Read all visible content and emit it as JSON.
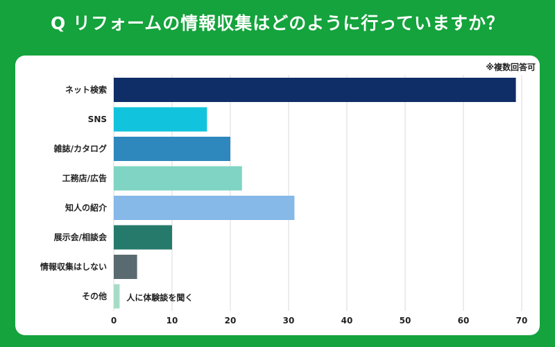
{
  "title": "Q リフォームの情報収集はどのように行っていますか？",
  "note": "※複数回答可",
  "chart_data": {
    "type": "bar",
    "orientation": "horizontal",
    "title": "Q リフォームの情報収集はどのように行っていますか？",
    "categories": [
      "ネット検索",
      "SNS",
      "雑誌/カタログ",
      "工務店/広告",
      "知人の紹介",
      "展示会/相談会",
      "情報収集はしない",
      "その他"
    ],
    "values": [
      69,
      16,
      20,
      22,
      31,
      10,
      4,
      1
    ],
    "colors": [
      "#0f2d66",
      "#12c3dd",
      "#2e87bd",
      "#7fd4c3",
      "#86b8e8",
      "#267a6b",
      "#596a70",
      "#a6dcc6"
    ],
    "xlim": [
      0,
      70
    ],
    "xticks": [
      0,
      10,
      20,
      30,
      40,
      50,
      60,
      70
    ],
    "grid": true,
    "annotations": [
      {
        "category": "その他",
        "text": "人に体験談を聞く"
      }
    ]
  }
}
